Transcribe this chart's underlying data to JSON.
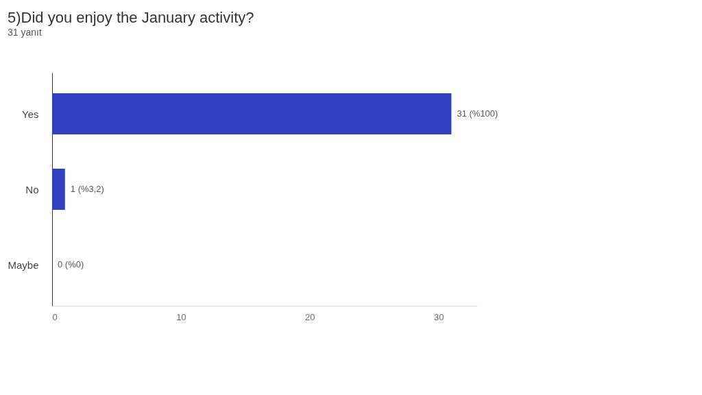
{
  "chart_data": {
    "type": "bar",
    "orientation": "horizontal",
    "title": "5)Did you enjoy the January activity?",
    "subtitle": "31 yanıt",
    "categories": [
      "Yes",
      "No",
      "Maybe"
    ],
    "values": [
      31,
      1,
      0
    ],
    "value_labels": [
      "31 (%100)",
      "1 (%3,2)",
      "0 (%0)"
    ],
    "color": "#3040c0",
    "xlim": [
      0,
      33
    ],
    "xticks": [
      0,
      10,
      20,
      30
    ],
    "grid": false
  }
}
